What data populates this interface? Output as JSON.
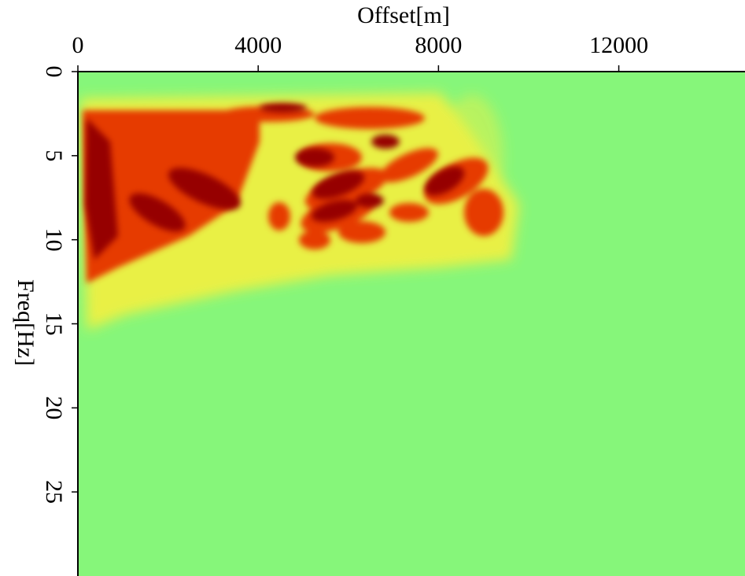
{
  "chart_data": {
    "type": "heatmap",
    "xlabel": "Offset[m]",
    "ylabel": "Freq[Hz]",
    "xlim": [
      0,
      14800
    ],
    "xticks": [
      0,
      4000,
      8000,
      12000
    ],
    "ylim": [
      0,
      30
    ],
    "yticks": [
      0,
      5,
      10,
      15,
      20,
      25
    ],
    "y_inverted": true,
    "x_axis_position": "top",
    "background_color": "#86f67a"
  }
}
